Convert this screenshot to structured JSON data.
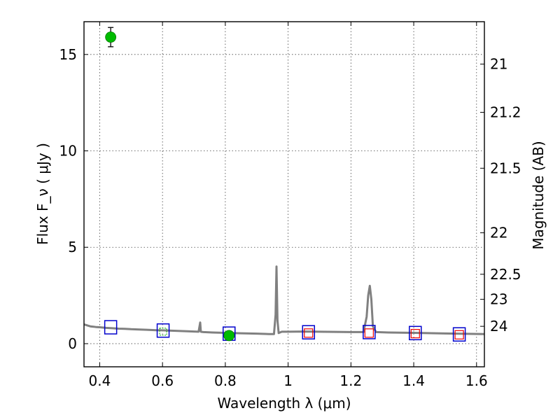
{
  "chart_data": {
    "type": "scatter",
    "xlabel": "Wavelength  λ (μm)",
    "ylabel": "Flux  F_ν  ( μJy )",
    "ylabel_right": "Magnitude (AB)",
    "xlim": [
      0.35,
      1.625
    ],
    "ylim": [
      -1.2,
      16.7
    ],
    "x_ticks": [
      0.4,
      0.6,
      0.8,
      1.0,
      1.2,
      1.4,
      1.6
    ],
    "x_tick_labels": [
      "0.4",
      "0.6",
      "0.8",
      "1",
      "1.2",
      "1.4",
      "1.6"
    ],
    "y_ticks": [
      0,
      5,
      10,
      15
    ],
    "y_tick_labels": [
      "0",
      "5",
      "10",
      "15"
    ],
    "right_ticks": [
      {
        "label": "21",
        "flux": 14.5
      },
      {
        "label": "21.2",
        "flux": 12.0
      },
      {
        "label": "21.5",
        "flux": 9.1
      },
      {
        "label": "22",
        "flux": 5.75
      },
      {
        "label": "22.5",
        "flux": 3.6
      },
      {
        "label": "23",
        "flux": 2.3
      },
      {
        "label": "24",
        "flux": 0.9
      }
    ],
    "grid": true,
    "series": [
      {
        "kind": "spectrum",
        "color": "#808080",
        "x": [
          0.35,
          0.36,
          0.37,
          0.38,
          0.39,
          0.4,
          0.42,
          0.44,
          0.46,
          0.48,
          0.5,
          0.52,
          0.55,
          0.58,
          0.6,
          0.62,
          0.65,
          0.68,
          0.7,
          0.715,
          0.72,
          0.722,
          0.725,
          0.73,
          0.76,
          0.8,
          0.85,
          0.9,
          0.94,
          0.955,
          0.96,
          0.963,
          0.966,
          0.97,
          0.98,
          1.0,
          1.05,
          1.1,
          1.15,
          1.2,
          1.24,
          1.25,
          1.255,
          1.26,
          1.265,
          1.27,
          1.28,
          1.32,
          1.4,
          1.5,
          1.625
        ],
        "y": [
          1.0,
          0.95,
          0.9,
          0.88,
          0.86,
          0.85,
          0.82,
          0.8,
          0.78,
          0.77,
          0.75,
          0.74,
          0.72,
          0.7,
          0.69,
          0.68,
          0.66,
          0.64,
          0.63,
          0.62,
          1.1,
          0.62,
          0.61,
          0.6,
          0.58,
          0.56,
          0.54,
          0.52,
          0.5,
          0.5,
          1.5,
          4.0,
          1.2,
          0.55,
          0.62,
          0.62,
          0.63,
          0.62,
          0.61,
          0.6,
          0.6,
          1.4,
          2.5,
          3.0,
          2.3,
          0.9,
          0.6,
          0.58,
          0.56,
          0.53,
          0.5
        ]
      },
      {
        "kind": "photometry",
        "marker": "circle",
        "color": "#00bb00",
        "points": [
          {
            "x": 0.435,
            "y": 15.9,
            "err": 0.5
          },
          {
            "x": 0.812,
            "y": 0.42,
            "err": 0.1
          }
        ]
      },
      {
        "kind": "model-photometry",
        "marker": "square",
        "color": "#0000cc",
        "points": [
          {
            "x": 0.435,
            "y": 0.85
          },
          {
            "x": 0.602,
            "y": 0.68
          },
          {
            "x": 0.812,
            "y": 0.52
          },
          {
            "x": 1.065,
            "y": 0.59
          },
          {
            "x": 1.258,
            "y": 0.6
          },
          {
            "x": 1.405,
            "y": 0.55
          },
          {
            "x": 1.545,
            "y": 0.48
          }
        ]
      },
      {
        "kind": "upper-limit",
        "marker": "square",
        "color": "#ee0000",
        "points": [
          {
            "x": 1.065,
            "y": 0.55
          },
          {
            "x": 1.258,
            "y": 0.55
          },
          {
            "x": 1.405,
            "y": 0.52
          },
          {
            "x": 1.545,
            "y": 0.46
          }
        ]
      },
      {
        "kind": "minor-points",
        "marker": "small-square",
        "color": "#00aa00",
        "points": [
          {
            "x": 0.602,
            "y": 0.62
          }
        ]
      }
    ]
  }
}
